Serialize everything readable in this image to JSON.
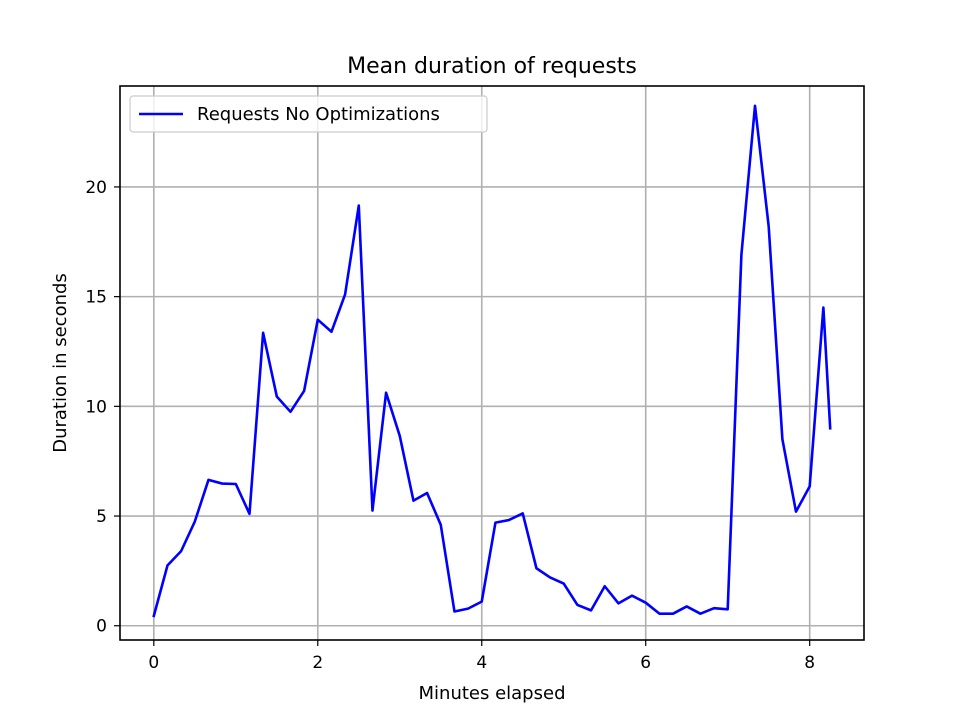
{
  "chart_data": {
    "type": "line",
    "title": "Mean duration of requests",
    "xlabel": "Minutes elapsed",
    "ylabel": "Duration in seconds",
    "xlim": [
      -0.4125,
      8.6625
    ],
    "ylim": [
      -0.65,
      24.6
    ],
    "xticks": [
      0,
      2,
      4,
      6,
      8
    ],
    "yticks": [
      0,
      5,
      10,
      15,
      20
    ],
    "grid": true,
    "legend_position": "upper-left",
    "series": [
      {
        "name": "Requests No Optimizations",
        "color": "#0000ff",
        "x": [
          0,
          0.167,
          0.333,
          0.5,
          0.667,
          0.833,
          1.0,
          1.167,
          1.333,
          1.5,
          1.667,
          1.833,
          2.0,
          2.167,
          2.333,
          2.5,
          2.667,
          2.833,
          3.0,
          3.167,
          3.333,
          3.5,
          3.667,
          3.833,
          4.0,
          4.167,
          4.333,
          4.5,
          4.667,
          4.833,
          5.0,
          5.167,
          5.333,
          5.5,
          5.667,
          5.833,
          6.0,
          6.167,
          6.333,
          6.5,
          6.667,
          6.833,
          7.0,
          7.167,
          7.333,
          7.5,
          7.667,
          7.833,
          8.0,
          8.167,
          8.25
        ],
        "y": [
          0.45,
          2.75,
          3.4,
          4.75,
          6.65,
          6.48,
          6.46,
          5.1,
          13.35,
          10.45,
          9.75,
          10.7,
          13.95,
          13.4,
          15.1,
          19.15,
          5.25,
          10.62,
          8.65,
          5.7,
          6.05,
          4.6,
          0.65,
          0.78,
          1.1,
          4.7,
          4.82,
          5.12,
          2.62,
          2.2,
          1.92,
          0.95,
          0.7,
          1.8,
          1.02,
          1.37,
          1.05,
          0.55,
          0.55,
          0.88,
          0.55,
          0.8,
          0.75,
          16.9,
          23.7,
          18.2,
          8.5,
          5.2,
          6.35,
          14.5,
          9.0
        ]
      }
    ]
  }
}
